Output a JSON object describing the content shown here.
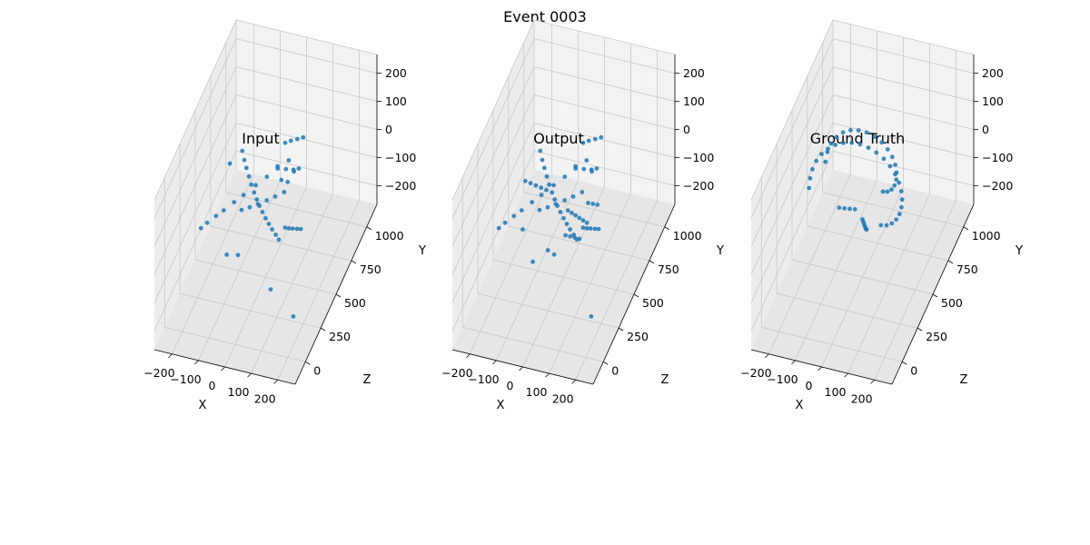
{
  "suptitle": "Event 0003",
  "colors": {
    "point": "#1f77b4",
    "pane_left": "#ececec",
    "pane_right": "#f3f3f3",
    "pane_floor": "#e6e6e6",
    "grid": "#c8c8c8",
    "axis_line": "#000000"
  },
  "chart_data": [
    {
      "type": "scatter",
      "title": "Input",
      "xlabel": "X",
      "ylabel": "Y",
      "zlabel": "Z",
      "x_ticks": [
        "−200",
        "−100",
        "0",
        "100",
        "200"
      ],
      "y_ticks": [
        "−200",
        "−100",
        "0",
        "100",
        "200"
      ],
      "z_ticks": [
        "0",
        "250",
        "500",
        "750",
        "1000"
      ],
      "xlim": [
        -280,
        280
      ],
      "ylim": [
        -260,
        260
      ],
      "zlim": [
        -100,
        1200
      ],
      "grid": true,
      "points": [
        [
          -180,
          20,
          240
        ],
        [
          -168,
          16,
          292
        ],
        [
          -150,
          11,
          360
        ],
        [
          -134,
          6,
          418
        ],
        [
          -112,
          2,
          495
        ],
        [
          -92,
          -2,
          565
        ],
        [
          -66,
          -6,
          655
        ],
        [
          -42,
          -10,
          736
        ],
        [
          -18,
          -13,
          812
        ],
        [
          6,
          -18,
          892
        ],
        [
          -108,
          126,
          610
        ],
        [
          -96,
          104,
          595
        ],
        [
          -84,
          86,
          580
        ],
        [
          -70,
          68,
          562
        ],
        [
          -56,
          51,
          545
        ],
        [
          -40,
          37,
          525
        ],
        [
          -24,
          26,
          504
        ],
        [
          -8,
          18,
          483
        ],
        [
          10,
          12,
          458
        ],
        [
          30,
          8,
          430
        ],
        [
          50,
          7,
          400
        ],
        [
          70,
          6,
          372
        ],
        [
          92,
          6,
          342
        ],
        [
          112,
          8,
          312
        ],
        [
          -66,
          16,
          430
        ],
        [
          -44,
          10,
          472
        ],
        [
          -22,
          6,
          514
        ],
        [
          2,
          2,
          560
        ],
        [
          24,
          -2,
          605
        ],
        [
          48,
          -4,
          652
        ],
        [
          40,
          142,
          700
        ],
        [
          55,
          138,
          730
        ],
        [
          72,
          131,
          765
        ],
        [
          88,
          126,
          795
        ],
        [
          118,
          152,
          520
        ],
        [
          134,
          150,
          540
        ],
        [
          130,
          40,
          340
        ],
        [
          140,
          30,
          360
        ],
        [
          150,
          22,
          380
        ],
        [
          162,
          14,
          400
        ],
        [
          172,
          6,
          420
        ],
        [
          35,
          108,
          600
        ],
        [
          58,
          84,
          640
        ],
        [
          80,
          61,
          680
        ],
        [
          40,
          42,
          640
        ],
        [
          60,
          30,
          660
        ],
        [
          -92,
          -82,
          300
        ],
        [
          -40,
          -58,
          270
        ],
        [
          100,
          -128,
          230
        ],
        [
          -130,
          130,
          500
        ],
        [
          210,
          -160,
          150
        ]
      ]
    },
    {
      "type": "scatter",
      "title": "Output",
      "xlabel": "X",
      "ylabel": "Y",
      "zlabel": "Z",
      "x_ticks": [
        "−200",
        "−100",
        "0",
        "100",
        "200"
      ],
      "y_ticks": [
        "−200",
        "−100",
        "0",
        "100",
        "200"
      ],
      "z_ticks": [
        "0",
        "250",
        "500",
        "750",
        "1000"
      ],
      "xlim": [
        -280,
        280
      ],
      "ylim": [
        -260,
        260
      ],
      "zlim": [
        -100,
        1200
      ],
      "grid": true,
      "points": [
        [
          -180,
          20,
          240
        ],
        [
          -168,
          16,
          292
        ],
        [
          -150,
          11,
          360
        ],
        [
          -134,
          6,
          418
        ],
        [
          -112,
          2,
          495
        ],
        [
          -92,
          -2,
          565
        ],
        [
          -66,
          -6,
          655
        ],
        [
          -42,
          -10,
          736
        ],
        [
          -18,
          -13,
          812
        ],
        [
          6,
          -18,
          892
        ],
        [
          -108,
          126,
          610
        ],
        [
          -96,
          104,
          595
        ],
        [
          -84,
          86,
          580
        ],
        [
          -70,
          68,
          562
        ],
        [
          -56,
          51,
          545
        ],
        [
          -40,
          37,
          525
        ],
        [
          -24,
          26,
          504
        ],
        [
          -8,
          18,
          483
        ],
        [
          10,
          12,
          458
        ],
        [
          30,
          8,
          430
        ],
        [
          50,
          7,
          400
        ],
        [
          70,
          6,
          372
        ],
        [
          92,
          6,
          342
        ],
        [
          112,
          8,
          312
        ],
        [
          -66,
          16,
          430
        ],
        [
          -44,
          10,
          472
        ],
        [
          -22,
          6,
          514
        ],
        [
          2,
          2,
          560
        ],
        [
          24,
          -2,
          605
        ],
        [
          48,
          -4,
          652
        ],
        [
          -120,
          110,
          420
        ],
        [
          -104,
          96,
          440
        ],
        [
          -88,
          82,
          460
        ],
        [
          -72,
          68,
          480
        ],
        [
          -56,
          54,
          500
        ],
        [
          20,
          -20,
          540
        ],
        [
          30,
          -36,
          560
        ],
        [
          40,
          -52,
          580
        ],
        [
          50,
          -68,
          600
        ],
        [
          60,
          -84,
          620
        ],
        [
          70,
          -100,
          640
        ],
        [
          40,
          -44,
          420
        ],
        [
          52,
          -58,
          446
        ],
        [
          64,
          -72,
          472
        ],
        [
          76,
          -86,
          498
        ],
        [
          75,
          -30,
          640
        ],
        [
          88,
          -42,
          664
        ],
        [
          100,
          -54,
          688
        ],
        [
          40,
          142,
          700
        ],
        [
          55,
          138,
          730
        ],
        [
          72,
          131,
          765
        ],
        [
          88,
          126,
          795
        ],
        [
          118,
          152,
          520
        ],
        [
          134,
          150,
          540
        ],
        [
          130,
          40,
          340
        ],
        [
          140,
          30,
          360
        ],
        [
          150,
          22,
          380
        ],
        [
          162,
          14,
          400
        ],
        [
          172,
          6,
          420
        ],
        [
          35,
          108,
          600
        ],
        [
          58,
          84,
          640
        ],
        [
          80,
          61,
          680
        ],
        [
          -20,
          -90,
          380
        ],
        [
          0,
          -110,
          400
        ],
        [
          -130,
          -60,
          420
        ],
        [
          -60,
          -100,
          300
        ],
        [
          210,
          -160,
          150
        ]
      ]
    },
    {
      "type": "scatter",
      "title": "Ground Truth",
      "xlabel": "X",
      "ylabel": "Y",
      "zlabel": "Z",
      "x_ticks": [
        "−200",
        "−100",
        "0",
        "100",
        "200"
      ],
      "y_ticks": [
        "−200",
        "−100",
        "0",
        "100",
        "200"
      ],
      "z_ticks": [
        "0",
        "250",
        "500",
        "750",
        "1000"
      ],
      "xlim": [
        -280,
        280
      ],
      "ylim": [
        -260,
        260
      ],
      "zlim": [
        -100,
        1200
      ],
      "grid": true,
      "points": [
        [
          -200,
          30,
          500
        ],
        [
          -197,
          62,
          505
        ],
        [
          -189,
          93,
          510
        ],
        [
          -175,
          122,
          515
        ],
        [
          -155,
          148,
          520
        ],
        [
          -131,
          169,
          525
        ],
        [
          -103,
          186,
          530
        ],
        [
          -72,
          197,
          535
        ],
        [
          -40,
          202,
          540
        ],
        [
          -8,
          201,
          545
        ],
        [
          24,
          194,
          550
        ],
        [
          54,
          181,
          555
        ],
        [
          82,
          163,
          560
        ],
        [
          106,
          140,
          565
        ],
        [
          125,
          114,
          570
        ],
        [
          139,
          85,
          575
        ],
        [
          147,
          55,
          580
        ],
        [
          149,
          24,
          585
        ],
        [
          145,
          -6,
          590
        ],
        [
          136,
          -34,
          595
        ],
        [
          122,
          -58,
          600
        ],
        [
          103,
          -78,
          605
        ],
        [
          81,
          -92,
          610
        ],
        [
          57,
          -99,
          615
        ],
        [
          -170,
          60,
          640
        ],
        [
          -164,
          92,
          648
        ],
        [
          -151,
          120,
          656
        ],
        [
          -132,
          143,
          664
        ],
        [
          -108,
          160,
          672
        ],
        [
          -80,
          170,
          680
        ],
        [
          -50,
          172,
          688
        ],
        [
          -20,
          167,
          696
        ],
        [
          10,
          155,
          704
        ],
        [
          36,
          137,
          712
        ],
        [
          58,
          114,
          720
        ],
        [
          74,
          87,
          728
        ],
        [
          84,
          58,
          736
        ],
        [
          87,
          28,
          744
        ],
        [
          84,
          -1,
          752
        ],
        [
          75,
          -27,
          760
        ],
        [
          61,
          -48,
          768
        ],
        [
          43,
          -63,
          776
        ],
        [
          23,
          -71,
          784
        ],
        [
          -60,
          30,
          420
        ],
        [
          -44,
          22,
          440
        ],
        [
          -28,
          14,
          460
        ],
        [
          -12,
          6,
          480
        ],
        [
          0,
          -60,
          550
        ],
        [
          2,
          -70,
          555
        ],
        [
          4,
          -80,
          560
        ],
        [
          6,
          -90,
          565
        ],
        [
          8,
          -100,
          570
        ],
        [
          10,
          -105,
          575
        ]
      ]
    }
  ]
}
